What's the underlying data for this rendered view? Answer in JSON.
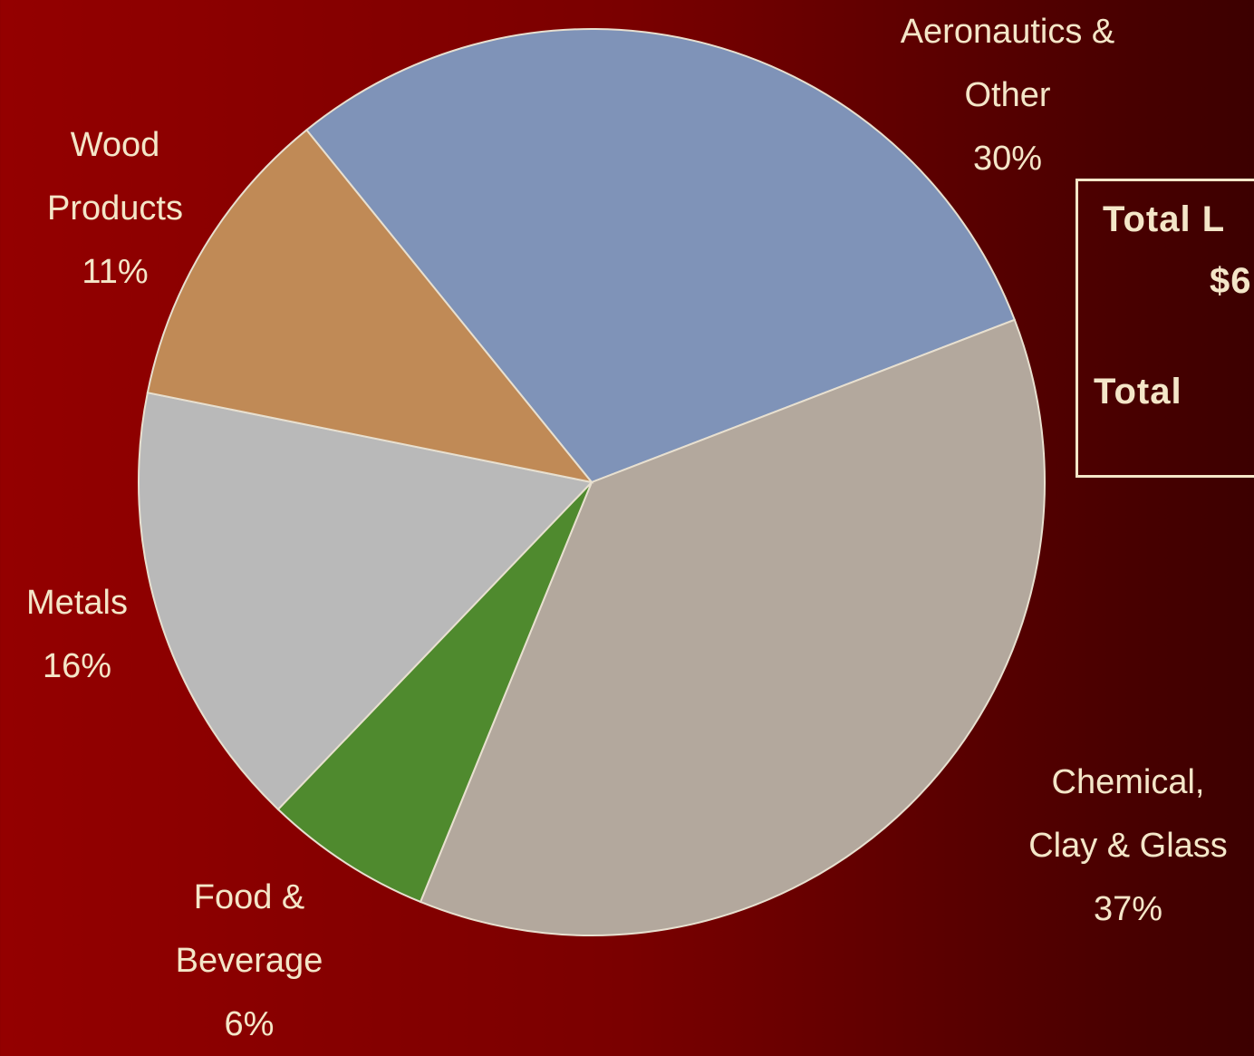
{
  "chart_data": {
    "type": "pie",
    "categories": [
      "Aeronautics & Other",
      "Chemical, Clay & Glass",
      "Food & Beverage",
      "Metals",
      "Wood Products"
    ],
    "values": [
      30,
      37,
      6,
      16,
      11
    ],
    "value_labels": [
      "30%",
      "37%",
      "6%",
      "16%",
      "11%"
    ],
    "colors": [
      "#7f93b8",
      "#b3a89d",
      "#4f8a2e",
      "#b9b9b9",
      "#c08a56"
    ]
  },
  "info_box": {
    "lines": [
      "Total L",
      "$6",
      "Total"
    ]
  }
}
